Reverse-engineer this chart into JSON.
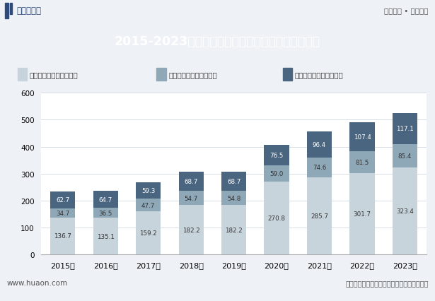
{
  "title": "2015-2023年和田地区第一、第二及第三产业增加值",
  "years": [
    "2015年",
    "2016年",
    "2017年",
    "2018年",
    "2019年",
    "2020年",
    "2021年",
    "2022年",
    "2023年"
  ],
  "industry1": [
    136.7,
    135.1,
    159.2,
    182.2,
    182.2,
    270.8,
    285.7,
    301.7,
    323.4
  ],
  "industry2": [
    34.7,
    36.5,
    47.7,
    54.7,
    54.8,
    59.0,
    74.6,
    81.5,
    85.4
  ],
  "industry3": [
    62.7,
    64.7,
    59.3,
    68.7,
    68.7,
    76.5,
    96.4,
    107.4,
    117.1
  ],
  "color1": "#c8d4dc",
  "color2": "#8fa8b8",
  "color3": "#4a6580",
  "legend_labels": [
    "第三产业增加值（亿元）",
    "第二产业增加值（亿元）",
    "第一产业增加值（亿元）"
  ],
  "ylabel_max": 600,
  "yticks": [
    0,
    100,
    200,
    300,
    400,
    500,
    600
  ],
  "title_bg_color": "#2d4a7a",
  "title_text_color": "#ffffff",
  "bg_color": "#eef2f7",
  "plot_bg_color": "#ffffff",
  "header_left": "华经情报网",
  "header_right": "专业严谨 • 客观科学",
  "footer_left": "www.huaon.com",
  "footer_right": "数据来源：新疆统计局；华经产业研究院整理",
  "label_color_dark": "#333333",
  "label_color_light": "#ffffff",
  "ind1_label_color": "#333333",
  "ind2_label_color": "#333333",
  "ind3_label_color": "#ffffff"
}
